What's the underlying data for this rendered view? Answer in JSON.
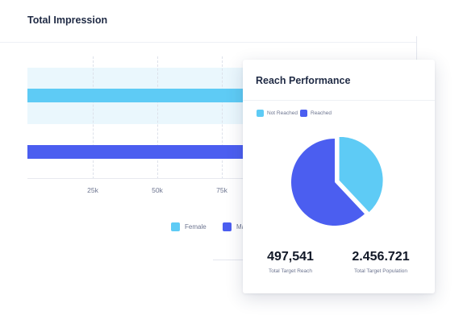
{
  "impression_card": {
    "title": "Total Impression",
    "ticks": [
      "25k",
      "50k",
      "75k"
    ],
    "legend": [
      {
        "label": "Female",
        "color": "#5ecbf5"
      },
      {
        "label": "Male",
        "color": "#4b5ef0"
      }
    ],
    "colors": {
      "female_band": "#eaf7fd",
      "female_bar": "#5ecbf5",
      "male_bar": "#4b5ef0"
    }
  },
  "reach_card": {
    "title": "Reach Performance",
    "legend": [
      {
        "label": "Not Reached",
        "color": "#5ecbf5"
      },
      {
        "label": "Reached",
        "color": "#4b5ef0"
      }
    ],
    "stats": [
      {
        "value": "497,541",
        "label": "Total Target Reach"
      },
      {
        "value": "2.456.721",
        "label": "Total Target Population"
      }
    ]
  },
  "chart_data": {
    "type": "pie",
    "categories": [
      "Not Reached",
      "Reached"
    ],
    "values": [
      38,
      62
    ],
    "colors": [
      "#5ecbf5",
      "#4b5ef0"
    ],
    "legend_position": "top-left"
  }
}
